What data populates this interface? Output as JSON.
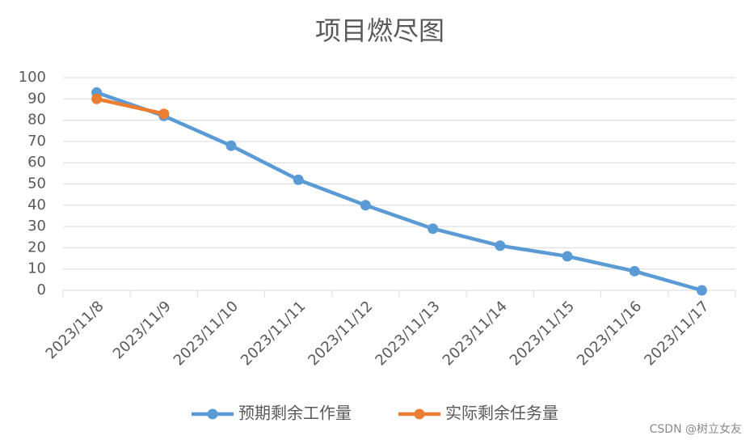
{
  "chart_data": {
    "type": "line",
    "title": "项目燃尽图",
    "categories": [
      "2023/11/8",
      "2023/11/9",
      "2023/11/10",
      "2023/11/11",
      "2023/11/12",
      "2023/11/13",
      "2023/11/14",
      "2023/11/15",
      "2023/11/16",
      "2023/11/17"
    ],
    "series": [
      {
        "name": "预期剩余工作量",
        "color": "#5b9bd5",
        "values": [
          93,
          82,
          68,
          52,
          40,
          29,
          21,
          16,
          9,
          0
        ]
      },
      {
        "name": "实际剩余任务量",
        "color": "#ed7d31",
        "values": [
          90,
          83,
          null,
          null,
          null,
          null,
          null,
          null,
          null,
          null
        ]
      }
    ],
    "ylim": [
      0,
      100
    ],
    "yticks": [
      0,
      10,
      20,
      30,
      40,
      50,
      60,
      70,
      80,
      90,
      100
    ],
    "grid": true,
    "legend": "bottom",
    "watermark": "CSDN @树立女友"
  }
}
